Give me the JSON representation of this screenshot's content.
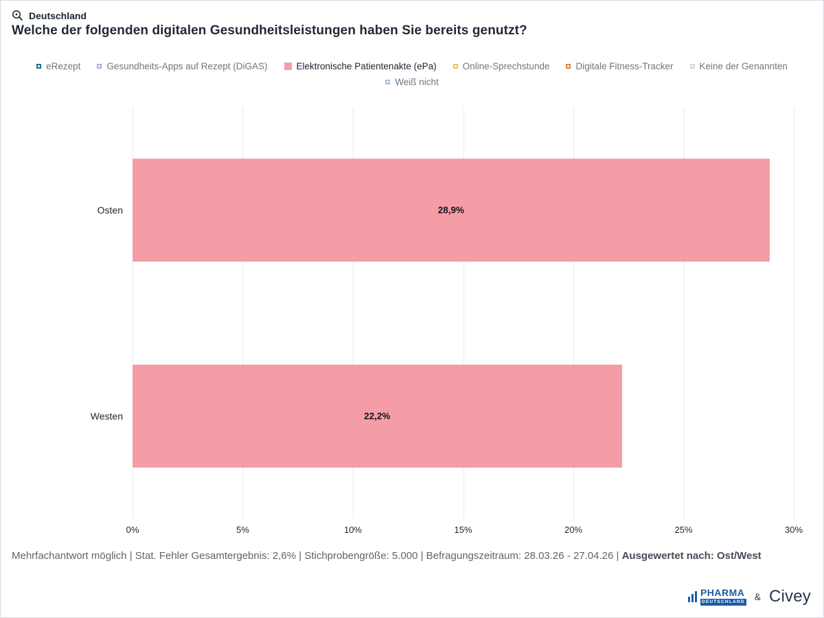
{
  "header": {
    "region_label": "Deutschland",
    "title": "Welche der folgenden digitalen Gesundheitsleistungen haben Sie bereits genutzt?"
  },
  "legend": [
    {
      "label": "eRezept",
      "color": "#1c6d8f",
      "selected": false
    },
    {
      "label": "Gesundheits-Apps auf Rezept (DiGAS)",
      "color": "#b3abdc",
      "selected": false
    },
    {
      "label": "Elektronische Patientenakte (ePa)",
      "color": "#f59da6",
      "selected": true
    },
    {
      "label": "Online-Sprechstunde",
      "color": "#f2c34a",
      "selected": false
    },
    {
      "label": "Digitale Fitness-Tracker",
      "color": "#e2853e",
      "selected": false
    },
    {
      "label": "Keine der Genannten",
      "color": "#d2d6dc",
      "selected": false
    },
    {
      "label": "Weiß nicht",
      "color": "#a9bfd3",
      "selected": false
    }
  ],
  "chart_data": {
    "type": "bar",
    "orientation": "horizontal",
    "series_name": "Elektronische Patientenakte (ePa)",
    "categories": [
      "Osten",
      "Westen"
    ],
    "values": [
      28.9,
      22.2
    ],
    "value_labels": [
      "28,9%",
      "22,2%"
    ],
    "bar_color": "#f59da6",
    "xlim": [
      0,
      30
    ],
    "x_ticks": [
      {
        "value": 0,
        "label": "0%"
      },
      {
        "value": 5,
        "label": "5%"
      },
      {
        "value": 10,
        "label": "10%"
      },
      {
        "value": 15,
        "label": "15%"
      },
      {
        "value": 20,
        "label": "20%"
      },
      {
        "value": 25,
        "label": "25%"
      },
      {
        "value": 30,
        "label": "30%"
      }
    ],
    "grid": true,
    "legend_position": "top"
  },
  "footer": {
    "note": "Mehrfachantwort möglich | Stat. Fehler Gesamtergebnis: 2,6% | Stichprobengröße: 5.000 | Befragungszeitraum: 28.03.26 - 27.04.26 | ",
    "note_bold": "Ausgewertet nach: Ost/West"
  },
  "branding": {
    "pharma_name": "PHARMA",
    "pharma_sub": "DEUTSCHLAND",
    "joiner": "&",
    "civey": "Civey"
  }
}
